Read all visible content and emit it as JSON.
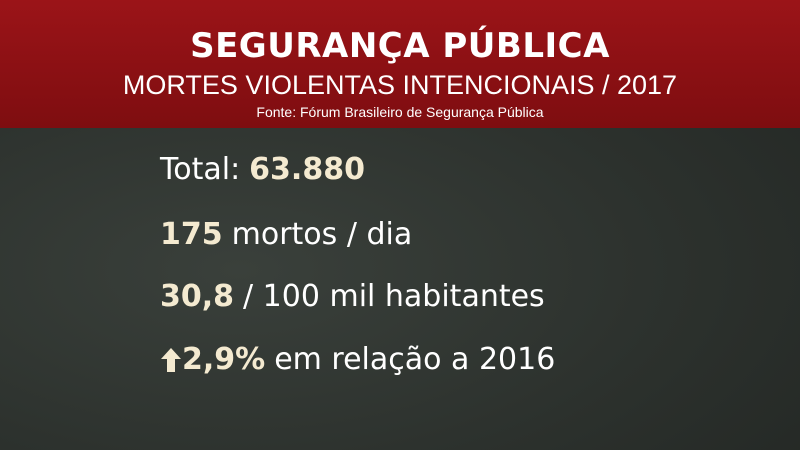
{
  "header": {
    "title": "SEGURANÇA PÚBLICA",
    "subtitle": "MORTES VIOLENTAS INTENCIONAIS / 2017",
    "source": "Fonte: Fórum Brasileiro de Segurança Pública"
  },
  "items": [
    {
      "label": "Total:",
      "value": "63.880"
    },
    {
      "value": "175",
      "text": "mortos / dia"
    },
    {
      "value": "30,8",
      "text": "/ 100 mil habitantes"
    },
    {
      "value": "2,9%",
      "text": "em relação a 2016"
    }
  ]
}
